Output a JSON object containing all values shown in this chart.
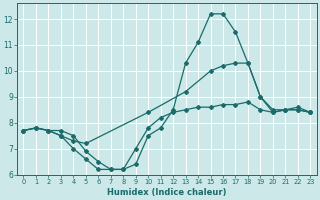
{
  "xlabel": "Humidex (Indice chaleur)",
  "bg_color": "#cce8e8",
  "grid_color": "#b8d8d8",
  "line_color": "#1a6b6b",
  "xlim": [
    -0.5,
    23.5
  ],
  "ylim": [
    6,
    12.6
  ],
  "yticks": [
    6,
    7,
    8,
    9,
    10,
    11,
    12
  ],
  "xticks": [
    0,
    1,
    2,
    3,
    4,
    5,
    6,
    7,
    8,
    9,
    10,
    11,
    12,
    13,
    14,
    15,
    16,
    17,
    18,
    19,
    20,
    21,
    22,
    23
  ],
  "line1_x": [
    0,
    1,
    2,
    3,
    4,
    5,
    6,
    7,
    8,
    9,
    10,
    11,
    12,
    13,
    14,
    15,
    16,
    17,
    18,
    19,
    20,
    21,
    22,
    23
  ],
  "line1_y": [
    7.7,
    7.8,
    7.7,
    7.5,
    7.0,
    6.6,
    6.2,
    6.2,
    6.2,
    6.4,
    7.5,
    7.8,
    8.5,
    10.3,
    11.1,
    12.2,
    12.2,
    11.5,
    10.3,
    9.0,
    8.4,
    8.5,
    8.6,
    8.4
  ],
  "line2_x": [
    0,
    1,
    2,
    3,
    4,
    5,
    10,
    13,
    15,
    16,
    17,
    18,
    19,
    20,
    21,
    22,
    23
  ],
  "line2_y": [
    7.7,
    7.8,
    7.7,
    7.5,
    7.3,
    7.2,
    8.4,
    9.2,
    10.0,
    10.2,
    10.3,
    10.3,
    9.0,
    8.5,
    8.5,
    8.5,
    8.4
  ],
  "line3_x": [
    0,
    1,
    2,
    3,
    4,
    5,
    6,
    7,
    8,
    9,
    10,
    11,
    12,
    13,
    14,
    15,
    16,
    17,
    18,
    19,
    20,
    21,
    22,
    23
  ],
  "line3_y": [
    7.7,
    7.8,
    7.7,
    7.7,
    7.5,
    6.9,
    6.5,
    6.2,
    6.2,
    7.0,
    7.8,
    8.2,
    8.4,
    8.5,
    8.6,
    8.6,
    8.7,
    8.7,
    8.8,
    8.5,
    8.4,
    8.5,
    8.5,
    8.4
  ]
}
